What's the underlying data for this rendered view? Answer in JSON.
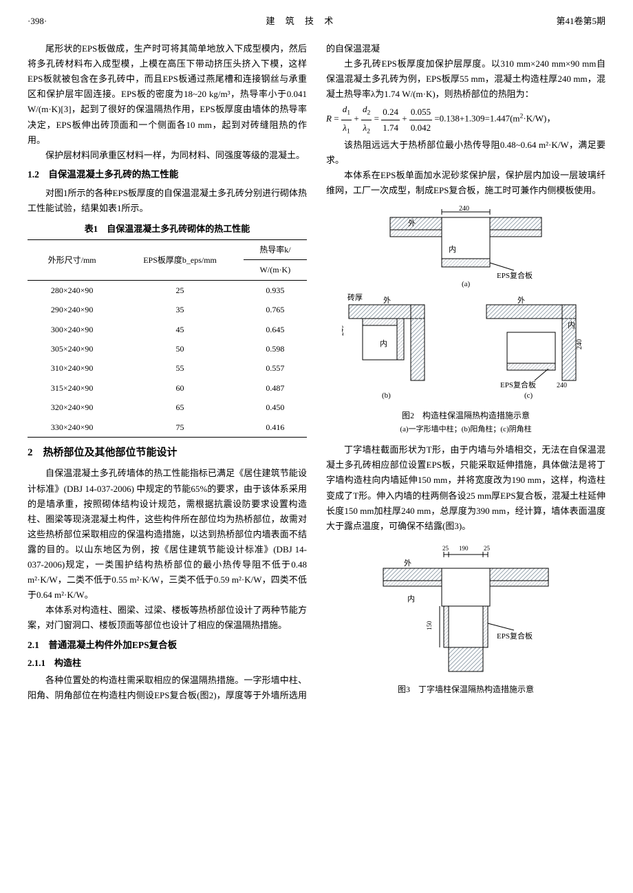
{
  "header": {
    "page": "·398·",
    "journal": "建 筑 技 术",
    "issue": "第41卷第5期"
  },
  "col1": {
    "para1": "尾形状的EPS板做成，生产时可将其简单地放入下成型模内，然后将多孔砖材料布入成型模，上模在高压下带动挤压头挤入下模，这样EPS板就被包含在多孔砖中，而且EPS板通过燕尾槽和连接钢丝与承重区和保护层牢固连接。EPS板的密度为18~20 kg/m³，热导率小于0.041 W/(m·K)[3]，起到了很好的保温隔热作用，EPS板厚度由墙体的热导率决定，EPS板伸出砖顶面和一个侧面各10 mm，起到对砖缝阻热的作用。",
    "para2": "保护层材料同承重区材料一样，为同材料、同强度等级的混凝土。",
    "h12": "1.2　自保温混凝土多孔砖的热工性能",
    "para3": "对图1所示的各种EPS板厚度的自保温混凝土多孔砖分别进行砌体热工性能试验，结果如表1所示。",
    "table1": {
      "caption": "表1　自保温混凝土多孔砖砌体的热工性能",
      "col1_header": "外形尺寸/mm",
      "col2_header": "EPS板厚度b_eps/mm",
      "col3_header_l1": "热导率k/",
      "col3_header_l2": "W/(m·K)",
      "rows": [
        {
          "dim": "280×240×90",
          "eps": "25",
          "k": "0.935"
        },
        {
          "dim": "290×240×90",
          "eps": "35",
          "k": "0.765"
        },
        {
          "dim": "300×240×90",
          "eps": "45",
          "k": "0.645"
        },
        {
          "dim": "305×240×90",
          "eps": "50",
          "k": "0.598"
        },
        {
          "dim": "310×240×90",
          "eps": "55",
          "k": "0.557"
        },
        {
          "dim": "315×240×90",
          "eps": "60",
          "k": "0.487"
        },
        {
          "dim": "320×240×90",
          "eps": "65",
          "k": "0.450"
        },
        {
          "dim": "330×240×90",
          "eps": "75",
          "k": "0.416"
        }
      ]
    },
    "h2": "2　热桥部位及其他部位节能设计",
    "para4": "自保温混凝土多孔砖墙体的热工性能指标已满足《居住建筑节能设计标准》(DBJ 14-037-2006) 中规定的节能65%的要求，由于该体系采用的是墙承重，按照砌体结构设计规范，需根据抗震设防要求设置构造柱、圈梁等现浇混凝土构件，这些构件所在部位均为热桥部位，故需对这些热桥部位采取相应的保温构造措施，以达到热桥部位内墙表面不结露的目的。以山东地区为例，按《居住建筑节能设计标准》(DBJ 14-037-2006)规定，一类围护结构热桥部位的最小热传导阻不低于0.48 m²·K/W，二类不低于0.55 m²·K/W，三类不低于0.59 m²·K/W，四类不低于0.64 m²·K/W。",
    "para5": "本体系对构造柱、圈梁、过梁、楼板等热桥部位设计了两种节能方案，对门窗洞口、楼板顶面等部位也设计了相应的保温隔热措施。",
    "h21": "2.1　普通混凝土构件外加EPS复合板",
    "h211": "2.1.1　构造柱",
    "para6": "各种位置处的构造柱需采取相应的保温隔热措施。一字形墙中柱、阳角、阴角部位在构造柱内侧设EPS复合板(图2)，厚度等于外墙所选用的自保温混凝"
  },
  "col2": {
    "para1": "土多孔砖EPS板厚度加保护层厚度。以310 mm×240 mm×90 mm自保温混凝土多孔砖为例，EPS板厚55 mm，混凝土构造柱厚240 mm，混凝土热导率λ为1.74 W/(m·K)，则热桥部位的热阻为：",
    "formula": "R = d₁/λ₁ + d₂/λ₂ = 0.24/1.74 + 0.055/0.042 = 0.138+1.309=1.447(m²·K/W)，",
    "para2": "该热阻远远大于热桥部位最小热传导阻0.48~0.64 m²·K/W，满足要求。",
    "para3": "本体系在EPS板单面加水泥砂浆保护层，保护层内加设一层玻璃纤维网，工厂一次成型，制成EPS复合板，施工时可兼作内侧模板使用。",
    "fig2": {
      "caption": "图2　构造柱保温隔热构造措施示意",
      "sub": "(a)一字形墙中柱；(b)阳角柱；(c)阴角柱",
      "labels": {
        "dim240": "240",
        "outer": "外",
        "inner": "内",
        "eps_board": "EPS复合板",
        "a": "(a)",
        "b": "(b)",
        "c": "(c)",
        "brick_thick": "砖厚"
      },
      "colors": {
        "hatch": "#9aa6b0",
        "eps_hatch": "#b7bec5",
        "line": "#000000",
        "bg": "#ffffff"
      }
    },
    "para4": "丁字墙柱截面形状为T形，由于内墙与外墙相交，无法在自保温混凝土多孔砖相应部位设置EPS板，只能采取延伸措施，具体做法是将丁字墙构造柱向内墙延伸150 mm，并将宽度改为190 mm，这样，构造柱变成了T形。伸入内墙的柱两侧各设25 mm厚EPS复合板，混凝土柱延伸长度150 mm加柱厚240 mm，总厚度为390 mm，经计算，墙体表面温度大于露点温度，可确保不结露(图3)。",
    "fig3": {
      "caption": "图3　丁字墙柱保温隔热构造措施示意",
      "labels": {
        "outer": "外",
        "inner": "内",
        "eps_board": "EPS复合板",
        "d25_1": "25",
        "d190": "190",
        "d25_2": "25",
        "d150": "150"
      },
      "colors": {
        "hatch": "#9aa6b0",
        "eps_hatch": "#c4c9cf",
        "line": "#000000"
      }
    }
  }
}
